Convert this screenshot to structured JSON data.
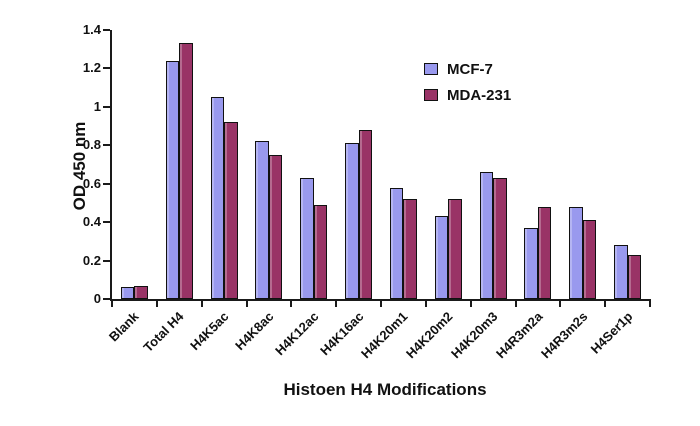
{
  "figure": {
    "background": "#ffffff"
  },
  "chart_data": {
    "type": "bar",
    "title": "",
    "xlabel": "Histoen H4 Modifications",
    "ylabel": "OD 450 nm",
    "categories": [
      "Blank",
      "Total H4",
      "H4K5ac",
      "H4K8ac",
      "H4K12ac",
      "H4K16ac",
      "H4K20m1",
      "H4K20m2",
      "H4K20m3",
      "H4R3m2a",
      "H4R3m2s",
      "H4Ser1p"
    ],
    "series": [
      {
        "name": "MCF-7",
        "color": "#9999ee",
        "border_color": "#111111",
        "values": [
          0.06,
          1.24,
          1.05,
          0.82,
          0.63,
          0.81,
          0.58,
          0.43,
          0.66,
          0.37,
          0.48,
          0.28
        ]
      },
      {
        "name": "MDA-231",
        "color": "#993366",
        "border_color": "#111111",
        "values": [
          0.07,
          1.33,
          0.92,
          0.75,
          0.49,
          0.88,
          0.52,
          0.52,
          0.63,
          0.48,
          0.41,
          0.23
        ]
      }
    ],
    "ylim": [
      0,
      1.4
    ],
    "yticks": [
      "0",
      "0.2",
      "0.4",
      "0.6",
      "0.8",
      "1",
      "1.2",
      "1.4"
    ],
    "grid": "off",
    "legend_position": "upper-right-inside"
  }
}
